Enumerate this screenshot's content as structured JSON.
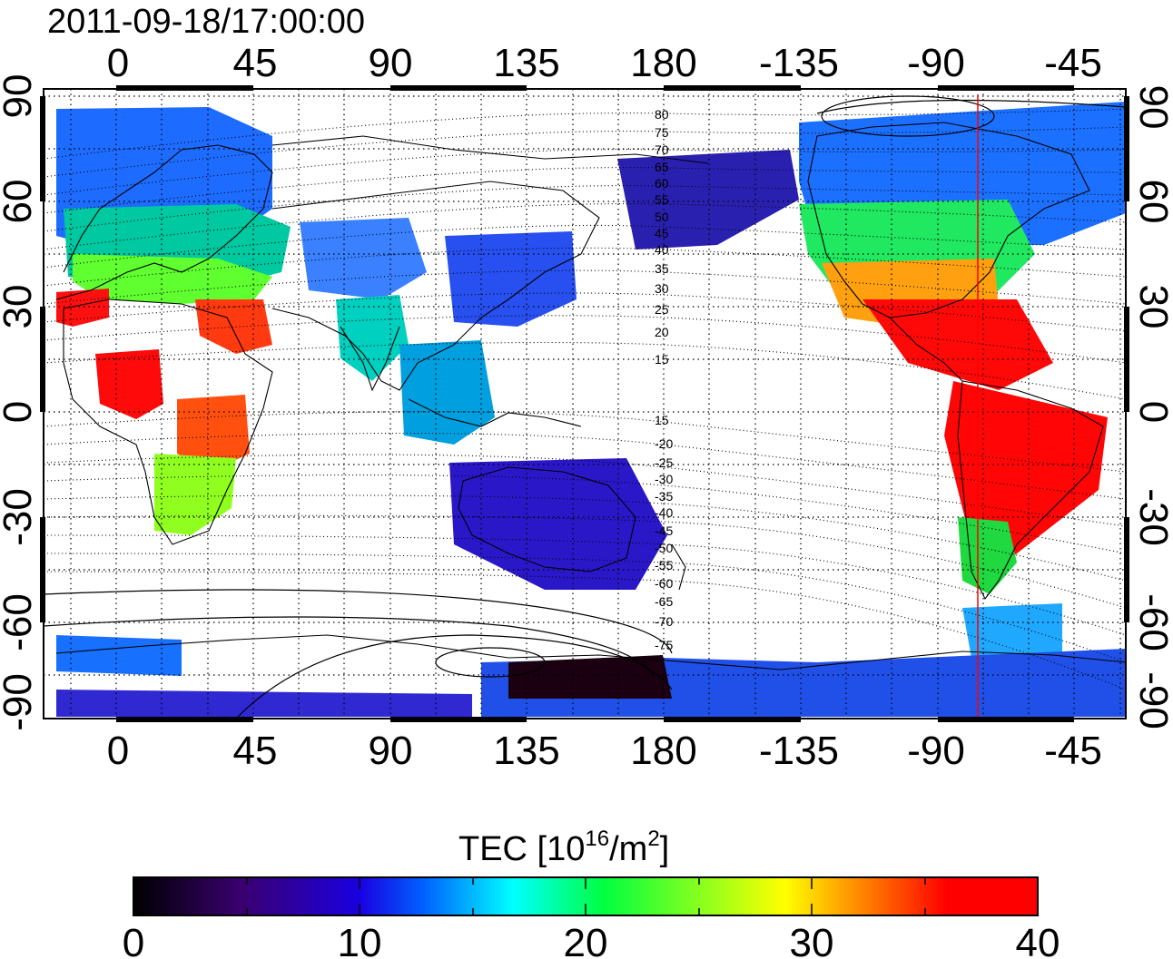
{
  "timestamp": "2011-09-18/17:00:00",
  "map": {
    "top_lon_ticks": [
      "0",
      "45",
      "90",
      "135",
      "180",
      "-135",
      "-90",
      "-45"
    ],
    "bottom_lon_ticks": [
      "0",
      "45",
      "90",
      "135",
      "180",
      "-135",
      "-90",
      "-45"
    ],
    "left_lat_ticks": [
      "90",
      "60",
      "30",
      "0",
      "-30",
      "-60",
      "-90"
    ],
    "right_lat_ticks": [
      "90",
      "60",
      "30",
      "0",
      "-30",
      "-60",
      "-90"
    ],
    "lon_range": [
      -25,
      330
    ],
    "lat_range": [
      -90,
      90
    ],
    "grid": "dotted 15°",
    "marker_line_lon": -72,
    "marker_line_color": "#ff0000",
    "mlat_contours_north": [
      "80",
      "75",
      "70",
      "65",
      "60",
      "55",
      "50",
      "45",
      "40",
      "35",
      "30",
      "25",
      "20",
      "15"
    ],
    "mlat_contours_south": [
      "15",
      "-20",
      "-25",
      "-30",
      "-35",
      "-40",
      "-45",
      "-50",
      "-55",
      "-60",
      "-65",
      "-70",
      "-75"
    ]
  },
  "colorbar": {
    "label_main": "TEC  [10",
    "label_exp": "16",
    "label_unit": "/m",
    "label_unit_exp": "2",
    "label_close": "]",
    "ticks": [
      "0",
      "10",
      "20",
      "30",
      "40"
    ],
    "min": 0,
    "max": 40,
    "palette": [
      "#000000",
      "#3a0070",
      "#1a00e0",
      "#0060ff",
      "#00ffff",
      "#00ff40",
      "#ffff00",
      "#ff7000",
      "#ff0000"
    ]
  }
}
